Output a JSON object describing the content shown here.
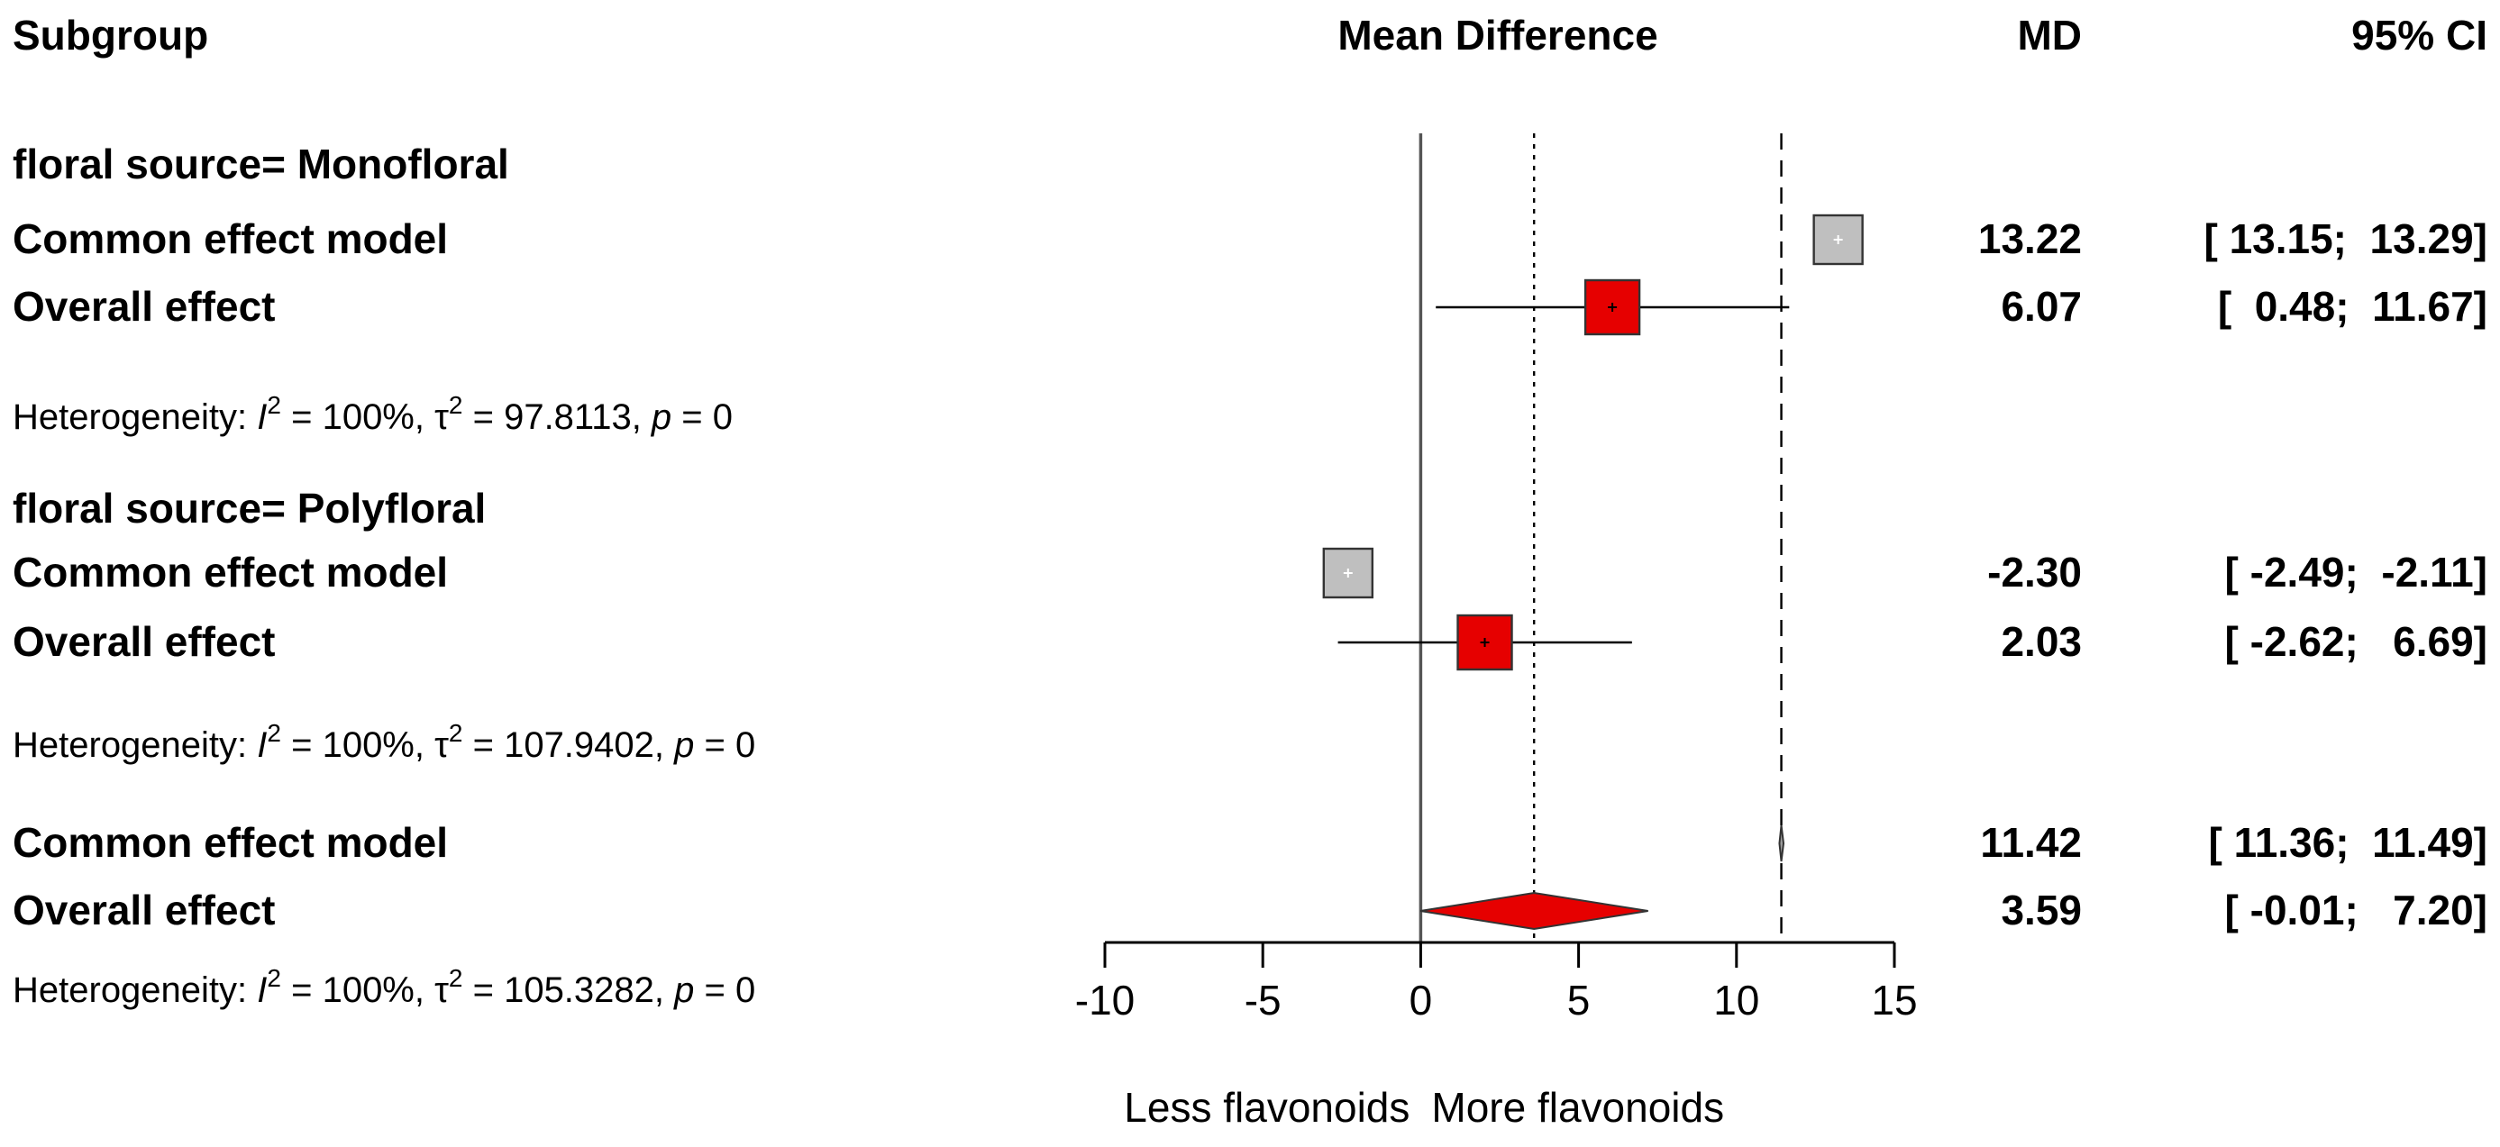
{
  "header": {
    "subgroup": "Subgroup",
    "effect": "Mean Difference",
    "md": "MD",
    "ci": "95% CI"
  },
  "chart_data": {
    "type": "forest",
    "xlim": [
      -10,
      15
    ],
    "xticks": [
      -10,
      -5,
      0,
      5,
      10,
      15
    ],
    "xlabel_left": "Less flavonoids",
    "xlabel_right": "More flavonoids",
    "reference_lines": {
      "null": 0,
      "common_overall": 11.42,
      "random_overall": 3.59
    },
    "colors": {
      "common_box": "#bfbfbf",
      "random_box": "#e60000",
      "diamond": "#e60000"
    },
    "groups": [
      {
        "label": "floral source= Monofloral",
        "rows": [
          {
            "label": "Common effect model",
            "model": "common",
            "md": 13.22,
            "lower": 13.15,
            "upper": 13.29,
            "md_text": "13.22",
            "ci_text": "[ 13.15;  13.29]"
          },
          {
            "label": "Overall effect",
            "model": "random",
            "md": 6.07,
            "lower": 0.48,
            "upper": 11.67,
            "md_text": "6.07",
            "ci_text": "[  0.48;  11.67]"
          }
        ],
        "heterogeneity": {
          "prefix": "Heterogeneity: ",
          "i2": "100%",
          "tau2": "97.8113",
          "p": "0"
        }
      },
      {
        "label": "floral source= Polyfloral",
        "rows": [
          {
            "label": "Common effect model",
            "model": "common",
            "md": -2.3,
            "lower": -2.49,
            "upper": -2.11,
            "md_text": "-2.30",
            "ci_text": "[ -2.49;  -2.11]"
          },
          {
            "label": "Overall effect",
            "model": "random",
            "md": 2.03,
            "lower": -2.62,
            "upper": 6.69,
            "md_text": "2.03",
            "ci_text": "[ -2.62;   6.69]"
          }
        ],
        "heterogeneity": {
          "prefix": "Heterogeneity: ",
          "i2": "100%",
          "tau2": "107.9402",
          "p": "0"
        }
      }
    ],
    "overall": {
      "rows": [
        {
          "label": "Common effect model",
          "model": "common",
          "md": 11.42,
          "lower": 11.36,
          "upper": 11.49,
          "md_text": "11.42",
          "ci_text": "[ 11.36;  11.49]"
        },
        {
          "label": "Overall effect",
          "model": "random",
          "md": 3.59,
          "lower": -0.01,
          "upper": 7.2,
          "md_text": "3.59",
          "ci_text": "[ -0.01;   7.20]"
        }
      ],
      "heterogeneity": {
        "prefix": "Heterogeneity: ",
        "i2": "100%",
        "tau2": "105.3282",
        "p": "0"
      }
    }
  }
}
